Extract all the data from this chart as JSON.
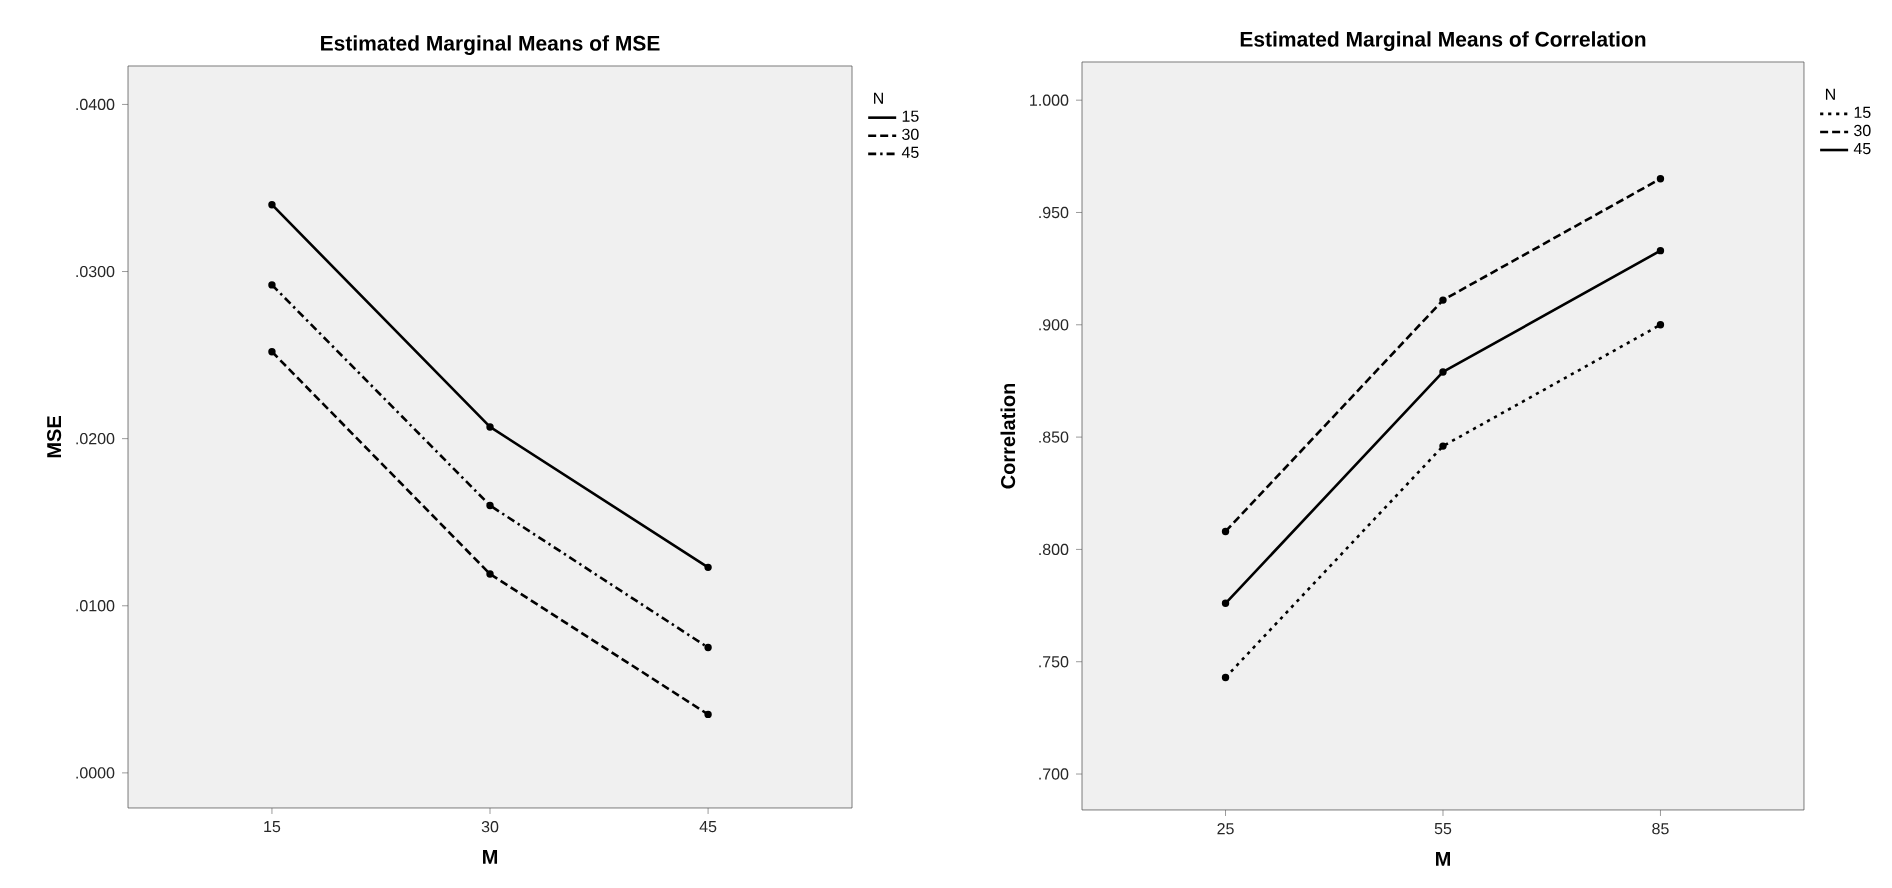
{
  "chart_data": [
    {
      "type": "line",
      "title": "Estimated Marginal Means of MSE",
      "xlabel": "M",
      "ylabel": "MSE",
      "legend_title": "N",
      "categories": [
        "15",
        "30",
        "45"
      ],
      "series": [
        {
          "name": "15",
          "color": "#000000",
          "line_style": "solid",
          "values": [
            0.034,
            0.0207,
            0.0123
          ]
        },
        {
          "name": "30",
          "color": "#000000",
          "line_style": "dashed",
          "values": [
            0.0252,
            0.0119,
            0.0035
          ]
        },
        {
          "name": "45",
          "color": "#000000",
          "line_style": "dashdot",
          "values": [
            0.0292,
            0.016,
            0.0075
          ]
        }
      ],
      "ylim": [
        -0.0021,
        0.0423
      ],
      "yticks": [
        {
          "value": 0,
          "label": ".0000"
        },
        {
          "value": 0.01,
          "label": ".0100"
        },
        {
          "value": 0.02,
          "label": ".0200"
        },
        {
          "value": 0.03,
          "label": ".0300"
        },
        {
          "value": 0.04,
          "label": ".0400"
        }
      ],
      "grid": false,
      "legend": "top right",
      "marker": "circle"
    },
    {
      "type": "line",
      "title": "Estimated Marginal Means of Correlation",
      "xlabel": "M",
      "ylabel": "Correlation",
      "legend_title": "N",
      "categories": [
        "25",
        "55",
        "85"
      ],
      "series": [
        {
          "name": "15",
          "color": "#000000",
          "line_style": "dotted",
          "values": [
            0.743,
            0.846,
            0.9
          ]
        },
        {
          "name": "30",
          "color": "#000000",
          "line_style": "dashed",
          "values": [
            0.808,
            0.911,
            0.965
          ]
        },
        {
          "name": "45",
          "color": "#000000",
          "line_style": "solid",
          "values": [
            0.776,
            0.879,
            0.933
          ]
        }
      ],
      "ylim": [
        0.684,
        1.017
      ],
      "yticks": [
        {
          "value": 0.7,
          "label": ".700"
        },
        {
          "value": 0.75,
          "label": ".750"
        },
        {
          "value": 0.8,
          "label": ".800"
        },
        {
          "value": 0.85,
          "label": ".850"
        },
        {
          "value": 0.9,
          "label": ".900"
        },
        {
          "value": 0.95,
          "label": ".950"
        },
        {
          "value": 1.0,
          "label": "1.000"
        }
      ],
      "grid": false,
      "legend": "top right",
      "marker": "circle"
    }
  ]
}
